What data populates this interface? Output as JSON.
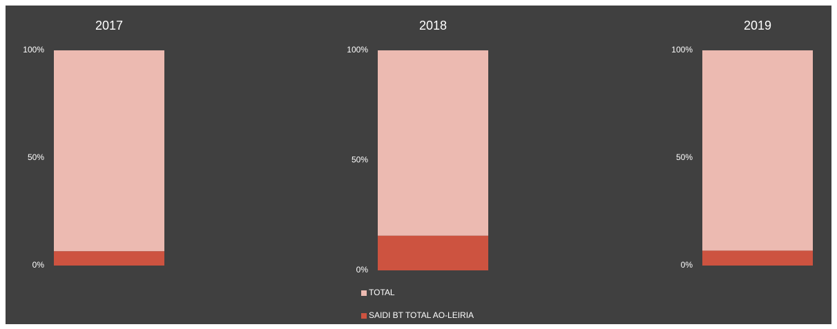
{
  "chart_data": [
    {
      "type": "bar",
      "title": "2017",
      "categories": [
        null
      ],
      "series": [
        {
          "color": "#cd5340",
          "values": [
            6.67
          ],
          "value_labels": [
            "6,67%"
          ]
        },
        {
          "color": "#ecbab1",
          "values": [
            93.33
          ]
        }
      ],
      "ylim": [
        0,
        100
      ],
      "yticks": [
        {
          "value": 0,
          "label": "0%"
        },
        {
          "value": 50,
          "label": "50%"
        },
        {
          "value": 100,
          "label": "100%"
        }
      ],
      "legend": false
    },
    {
      "type": "bar",
      "title": "2018",
      "categories": [
        null
      ],
      "series": [
        {
          "name": "SAIDI BT TOTAL AO-LEIRIA",
          "color": "#cd5340",
          "values": [
            15.77
          ],
          "value_labels": [
            "15,77%"
          ]
        },
        {
          "name": "TOTAL",
          "color": "#ecbab1",
          "values": [
            84.23
          ]
        }
      ],
      "ylim": [
        0,
        100
      ],
      "yticks": [
        {
          "value": 0,
          "label": "0%"
        },
        {
          "value": 50,
          "label": "50%"
        },
        {
          "value": 100,
          "label": "100%"
        }
      ],
      "legend": true
    },
    {
      "type": "bar",
      "title": "2019",
      "categories": [
        null
      ],
      "series": [
        {
          "color": "#cd5340",
          "values": [
            6.94
          ],
          "value_labels": [
            "6,94%"
          ]
        },
        {
          "color": "#ecbab1",
          "values": [
            93.06
          ]
        }
      ],
      "ylim": [
        0,
        100
      ],
      "yticks": [
        {
          "value": 0,
          "label": "0%"
        },
        {
          "value": 50,
          "label": "50%"
        },
        {
          "value": 100,
          "label": "100%"
        }
      ],
      "legend": false
    }
  ]
}
